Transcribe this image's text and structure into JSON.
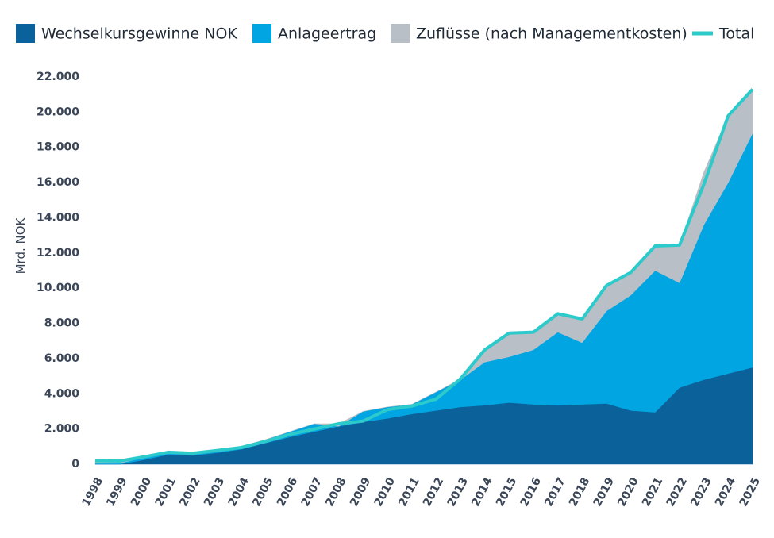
{
  "chart_data": {
    "type": "stacked-area",
    "y_label": "Mrd. NOK",
    "categories": [
      "1998",
      "1999",
      "2000",
      "2001",
      "2002",
      "2003",
      "2004",
      "2005",
      "2006",
      "2007",
      "2008",
      "2009",
      "2010",
      "2011",
      "2012",
      "2013",
      "2014",
      "2015",
      "2016",
      "2017",
      "2018",
      "2019",
      "2020",
      "2021",
      "2022",
      "2023",
      "2024",
      "2025"
    ],
    "series": [
      {
        "name": "Wechselkursgewinne NOK",
        "color": "#0b6199",
        "values": [
          0,
          0,
          250,
          550,
          500,
          650,
          850,
          1200,
          1550,
          1850,
          2150,
          2400,
          2600,
          2850,
          3050,
          3250,
          3350,
          3500,
          3400,
          3350,
          3400,
          3450,
          3050,
          2950,
          4350,
          4800,
          5150,
          5500
        ]
      },
      {
        "name": "Anlageertrag",
        "color": "#00a5e1",
        "values": [
          50,
          50,
          130,
          100,
          100,
          150,
          150,
          200,
          300,
          450,
          0,
          600,
          650,
          550,
          1050,
          1550,
          2450,
          2600,
          3100,
          4150,
          3500,
          5250,
          6550,
          8050,
          5950,
          8800,
          10850,
          13300
        ]
      },
      {
        "name": "Zuflüsse (nach Managementkosten)",
        "color": "#b9bfc6",
        "values": [
          150,
          130,
          40,
          30,
          20,
          0,
          0,
          0,
          0,
          0,
          150,
          0,
          0,
          0,
          0,
          50,
          700,
          1350,
          1000,
          1050,
          1350,
          1450,
          1300,
          1400,
          2150,
          3000,
          3800,
          2500
        ]
      },
      {
        "name": "Total",
        "color": "#2ccaca",
        "type": "line",
        "values": [
          200,
          180,
          420,
          680,
          620,
          780,
          950,
          1300,
          1700,
          2000,
          2300,
          2450,
          3100,
          3300,
          3700,
          4850,
          6500,
          7450,
          7500,
          8550,
          8250,
          10150,
          10900,
          12400,
          12450,
          15900,
          19800,
          21300
        ]
      }
    ],
    "ylim": [
      0,
      22000
    ],
    "yticks": [
      0,
      {
        "value": 2000,
        "label": "2.000"
      },
      {
        "value": 4000,
        "label": "4.000"
      },
      {
        "value": 6000,
        "label": "6.000"
      },
      {
        "value": 8000,
        "label": "8.000"
      },
      {
        "value": 10000,
        "label": "10.000"
      },
      {
        "value": 12000,
        "label": "12.000"
      },
      {
        "value": 14000,
        "label": "14.000"
      },
      {
        "value": 16000,
        "label": "16.000"
      },
      {
        "value": 18000,
        "label": "18.000"
      },
      {
        "value": 20000,
        "label": "20.000"
      },
      {
        "value": 22000,
        "label": "22.000"
      }
    ]
  }
}
